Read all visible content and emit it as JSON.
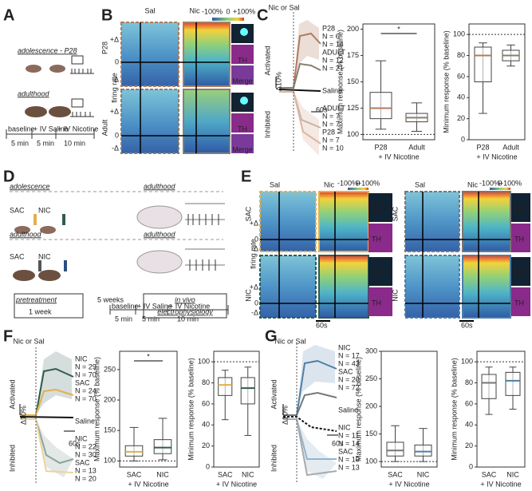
{
  "panels": {
    "A": {
      "letter": "A",
      "adolescence": "adolescence - P28",
      "adulthood": "adulthood",
      "protocol": [
        "baseline",
        "+ IV Saline",
        "+ IV Nicotine"
      ],
      "durations": [
        "5 min",
        "5 min",
        "10 min"
      ]
    },
    "B": {
      "letter": "B",
      "columns": [
        "Sal",
        "Nic"
      ],
      "scale": [
        "-100%",
        "0",
        "+100%"
      ],
      "rows": [
        "P28",
        "Adult"
      ],
      "ylabel": "firing rate",
      "axis_marks": [
        "+Δ",
        "0",
        "-Δ"
      ],
      "stains": [
        "NB",
        "TH",
        "Merge"
      ]
    },
    "C": {
      "letter": "C",
      "stimulus": "Nic or Sal",
      "activated": "Activated",
      "inhibited": "Inhibited",
      "scale_y": "Δ10%",
      "scale_x": "60s",
      "trace_labels": [
        {
          "lines": [
            "P28",
            "N = 6",
            "N = 14"
          ],
          "color": "#b07b5e"
        },
        {
          "lines": [
            "ADULT",
            "N = 12",
            "N = 21"
          ],
          "color": "#8a7e6e"
        },
        {
          "lines": [
            "Saline"
          ],
          "color": "#111111"
        },
        {
          "lines": [
            "ADULT",
            "N = 7",
            "N = 7"
          ],
          "color": "#c4b5a5"
        },
        {
          "lines": [
            "P28",
            "N = 7",
            "N = 10"
          ],
          "color": "#d9b7a3"
        }
      ]
    },
    "D": {
      "letter": "D",
      "row1_left": "adolescence",
      "row1_right": "adulthood",
      "row2_left": "adulthood",
      "row2_right": "adulthood",
      "groups1": [
        "SAC",
        "NIC"
      ],
      "groups2": [
        "SAC",
        "NIC"
      ],
      "pretreatment": "pretreatment",
      "pretreatment_time": "1 week",
      "gap": "5 weeks",
      "recording": [
        "in vivo",
        "electrophysiology"
      ],
      "protocol": [
        "baseline",
        "+ IV Saline",
        "+ IV Nicotine"
      ],
      "durations": [
        "5 min",
        "5 min",
        "10 min"
      ]
    },
    "E": {
      "letter": "E",
      "ylabel": "firing rate",
      "axis_marks": [
        "+Δ",
        "0",
        "-Δ"
      ],
      "stains": [
        "NB",
        "TH"
      ],
      "blocks": [
        {
          "columns": [
            "Sal",
            "Nic"
          ],
          "scale": [
            "-100%",
            "0",
            "+100%"
          ],
          "groups": [
            "SAC",
            "NIC"
          ],
          "time": "60s"
        },
        {
          "columns": [
            "Sal",
            "Nic"
          ],
          "scale": [
            "-100%",
            "0",
            "+100%"
          ],
          "groups": [
            "SAC",
            "NIC"
          ],
          "time": "60s"
        }
      ]
    },
    "F": {
      "letter": "F",
      "stimulus": "Nic or Sal",
      "activated": "Activated",
      "inhibited": "Inhibited",
      "scale_y": "Δ10%",
      "scale_x": "60s",
      "trace_labels": [
        {
          "lines": [
            "NIC",
            "N = 29",
            "N = 70"
          ],
          "color": "#2f5b50"
        },
        {
          "lines": [
            "SAC",
            "N = 24",
            "N = 70"
          ],
          "color": "#e3b04b"
        },
        {
          "lines": [
            "Saline"
          ],
          "color": "#111111"
        },
        {
          "lines": [
            "NIC",
            "N = 22",
            "N = 30"
          ],
          "color": "#8aa59c"
        },
        {
          "lines": [
            "SAC",
            "N = 13",
            "N = 20"
          ],
          "color": "#eed39a"
        }
      ]
    },
    "G": {
      "letter": "G",
      "stimulus": "Nic or Sal",
      "activated": "Activated",
      "inhibited": "Inhibited",
      "scale_y": "Δ10%",
      "scale_x": "60s",
      "trace_labels": [
        {
          "lines": [
            "NIC",
            "N = 17",
            "N = 43"
          ],
          "color": "#4e7fa6"
        },
        {
          "lines": [
            "SAC",
            "N = 20",
            "N = 72"
          ],
          "color": "#777777"
        },
        {
          "lines": [
            "Saline"
          ],
          "color": "#111111"
        },
        {
          "lines": [
            "NIC",
            "N = 11",
            "N = 14"
          ],
          "color": "#93b4cc"
        },
        {
          "lines": [
            "SAC",
            "N = 10",
            "N = 13"
          ],
          "color": "#aaaaaa"
        }
      ]
    }
  },
  "chart_data": [
    {
      "type": "box",
      "ylabel": "Maximum response (% baseline)",
      "xlabel": "+ IV Nicotine",
      "categories": [
        "P28",
        "Adult"
      ],
      "colors": [
        "#b07b5e",
        "#8a7e6e"
      ],
      "ylim": [
        95,
        205
      ],
      "yticks": [
        100,
        125,
        150,
        175,
        200
      ],
      "reference_line": 100,
      "significance": "*",
      "boxes": [
        {
          "min": 105,
          "q1": 115,
          "median": 125,
          "q3": 140,
          "max": 170
        },
        {
          "min": 103,
          "q1": 112,
          "median": 116,
          "q3": 120,
          "max": 130
        }
      ]
    },
    {
      "type": "box",
      "ylabel": "Minimum response (% baseline)",
      "xlabel": "+ IV Nicotine",
      "categories": [
        "P28",
        "Adult"
      ],
      "colors": [
        "#b07b5e",
        "#8a7e6e"
      ],
      "ylim": [
        0,
        110
      ],
      "yticks": [
        0,
        20,
        40,
        60,
        80,
        100
      ],
      "reference_line": 100,
      "boxes": [
        {
          "min": 25,
          "q1": 55,
          "median": 80,
          "q3": 88,
          "max": 92
        },
        {
          "min": 70,
          "q1": 75,
          "median": 80,
          "q3": 85,
          "max": 90
        }
      ]
    },
    {
      "type": "box",
      "ylabel": "Maximum response (% baseline)",
      "xlabel": "+ IV Nicotine",
      "categories": [
        "SAC",
        "NIC"
      ],
      "colors": [
        "#e3b04b",
        "#2f5b50"
      ],
      "ylim": [
        90,
        280
      ],
      "yticks": [
        100,
        150,
        200,
        250
      ],
      "reference_line": 100,
      "significance": "*",
      "boxes": [
        {
          "min": 100,
          "q1": 108,
          "median": 115,
          "q3": 125,
          "max": 155
        },
        {
          "min": 102,
          "q1": 112,
          "median": 122,
          "q3": 135,
          "max": 170
        }
      ]
    },
    {
      "type": "box",
      "ylabel": "Minimum response (% baseline)",
      "xlabel": "+ IV Nicotine",
      "categories": [
        "SAC",
        "NIC"
      ],
      "colors": [
        "#e3b04b",
        "#2f5b50"
      ],
      "ylim": [
        0,
        110
      ],
      "yticks": [
        0,
        20,
        40,
        60,
        80,
        100
      ],
      "reference_line": 100,
      "boxes": [
        {
          "min": 45,
          "q1": 68,
          "median": 78,
          "q3": 85,
          "max": 92
        },
        {
          "min": 30,
          "q1": 60,
          "median": 75,
          "q3": 85,
          "max": 95
        }
      ]
    },
    {
      "type": "box",
      "ylabel": "Maximum response (% baseline)",
      "xlabel": "+ IV Nicotine",
      "categories": [
        "SAC",
        "NIC"
      ],
      "colors": [
        "#777777",
        "#4e7fa6"
      ],
      "ylim": [
        90,
        300
      ],
      "yticks": [
        100,
        150,
        200,
        250,
        300
      ],
      "reference_line": 100,
      "boxes": [
        {
          "min": 100,
          "q1": 110,
          "median": 120,
          "q3": 135,
          "max": 165
        },
        {
          "min": 100,
          "q1": 110,
          "median": 118,
          "q3": 130,
          "max": 160
        }
      ]
    },
    {
      "type": "box",
      "ylabel": "Minimum response (% baseline)",
      "xlabel": "+ IV Nicotine",
      "categories": [
        "SAC",
        "NIC"
      ],
      "colors": [
        "#777777",
        "#4e7fa6"
      ],
      "ylim": [
        0,
        110
      ],
      "yticks": [
        0,
        20,
        40,
        60,
        80,
        100
      ],
      "reference_line": 100,
      "boxes": [
        {
          "min": 50,
          "q1": 65,
          "median": 80,
          "q3": 88,
          "max": 95
        },
        {
          "min": 55,
          "q1": 68,
          "median": 82,
          "q3": 90,
          "max": 95
        }
      ]
    }
  ]
}
